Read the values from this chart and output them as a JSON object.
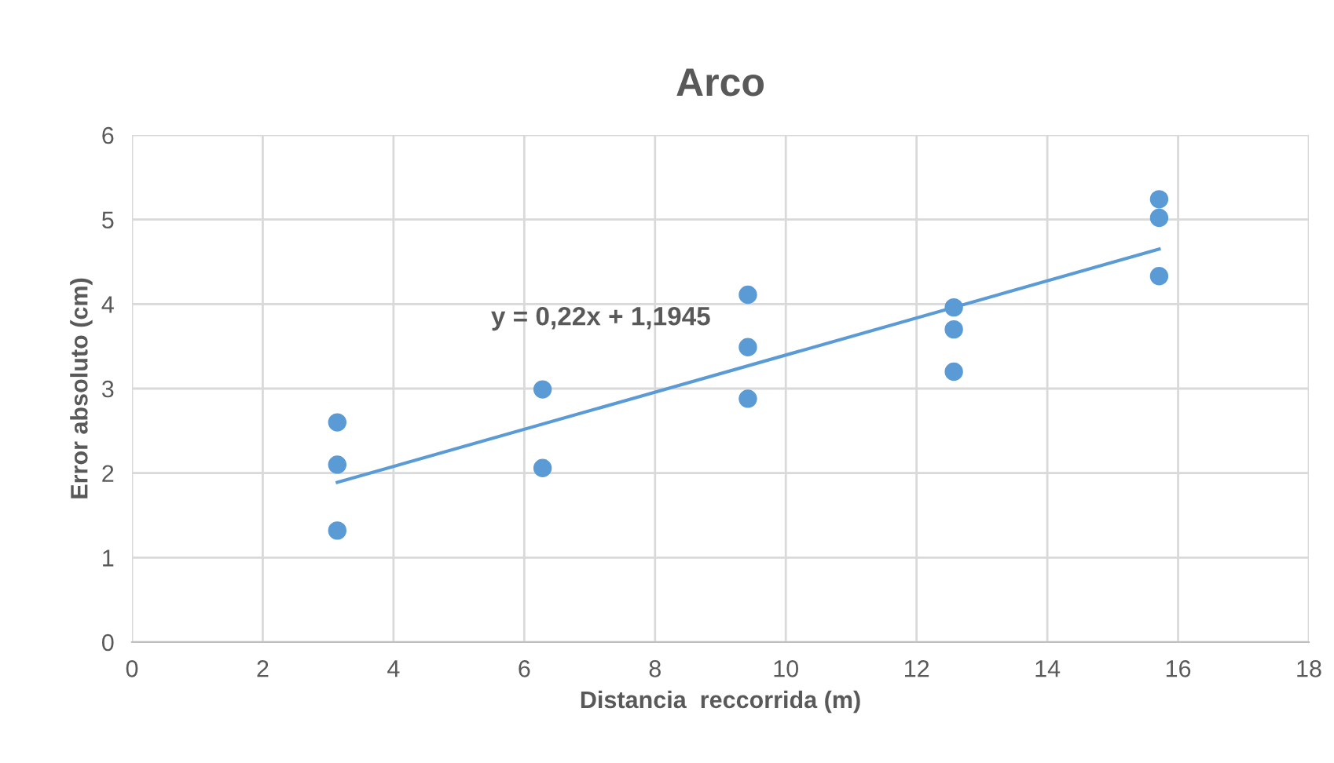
{
  "chart_data": {
    "type": "scatter",
    "title": "Arco",
    "xlabel": "Distancia  reccorrida (m)",
    "ylabel": "Error absoluto (cm)",
    "series": [
      {
        "color": "#5b9bd5",
        "x": [
          3.14,
          3.14,
          3.14,
          6.28,
          6.28,
          9.42,
          9.42,
          9.42,
          12.57,
          12.57,
          12.57,
          15.71,
          15.71,
          15.71
        ],
        "values": [
          2.6,
          2.1,
          1.32,
          2.99,
          2.06,
          4.11,
          3.49,
          2.88,
          3.96,
          3.7,
          3.2,
          5.24,
          5.02,
          4.33
        ]
      },
      {
        "type": "line",
        "marker": "none",
        "color": "#5b9bd5",
        "x": [
          3.14,
          15.71
        ],
        "values": [
          1.89,
          4.65
        ]
      }
    ],
    "annotations": [
      "y = 0,22x + 1,1945"
    ],
    "xlim": [
      0,
      18
    ],
    "xticks": [
      0,
      2,
      4,
      6,
      8,
      10,
      12,
      14,
      16,
      18
    ],
    "ylim": [
      0,
      6
    ],
    "yticks": [
      0,
      1,
      2,
      3,
      4,
      5,
      6
    ],
    "grid": true,
    "marker": "circle",
    "legend": false
  }
}
